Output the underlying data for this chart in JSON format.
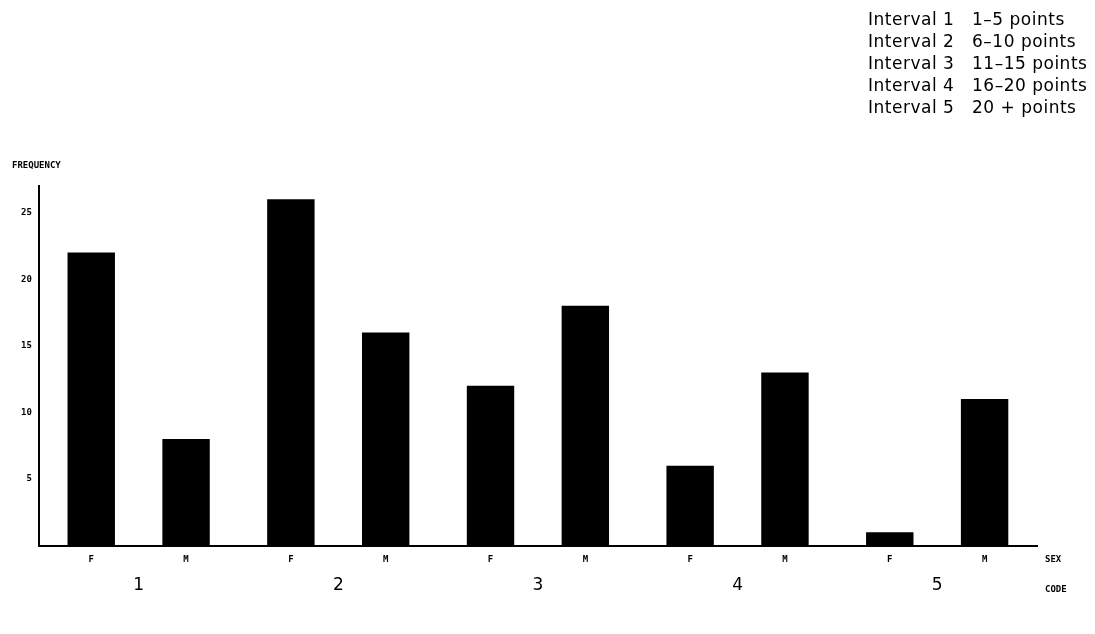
{
  "chart_data": {
    "type": "bar",
    "ylabel": "FREQUENCY",
    "xlabel": "CODE",
    "legend_title": "SEX",
    "annotations": [
      "Interval 1   1–5 points",
      "Interval 2   6–10 points",
      "Interval 3   11–15 points",
      "Interval 4   16–20 points",
      "Interval 5   20 + points"
    ],
    "categories": [
      "1",
      "2",
      "3",
      "4",
      "5"
    ],
    "series": [
      {
        "name": "F",
        "color": "#000000",
        "values": [
          22,
          26,
          12,
          6,
          1
        ]
      },
      {
        "name": "M",
        "color": "#000000",
        "values": [
          8,
          16,
          18,
          13,
          11
        ]
      }
    ],
    "ylim": [
      0,
      27
    ],
    "yticks": [
      5,
      10,
      15,
      20,
      25
    ],
    "grid": false,
    "legend": false
  }
}
